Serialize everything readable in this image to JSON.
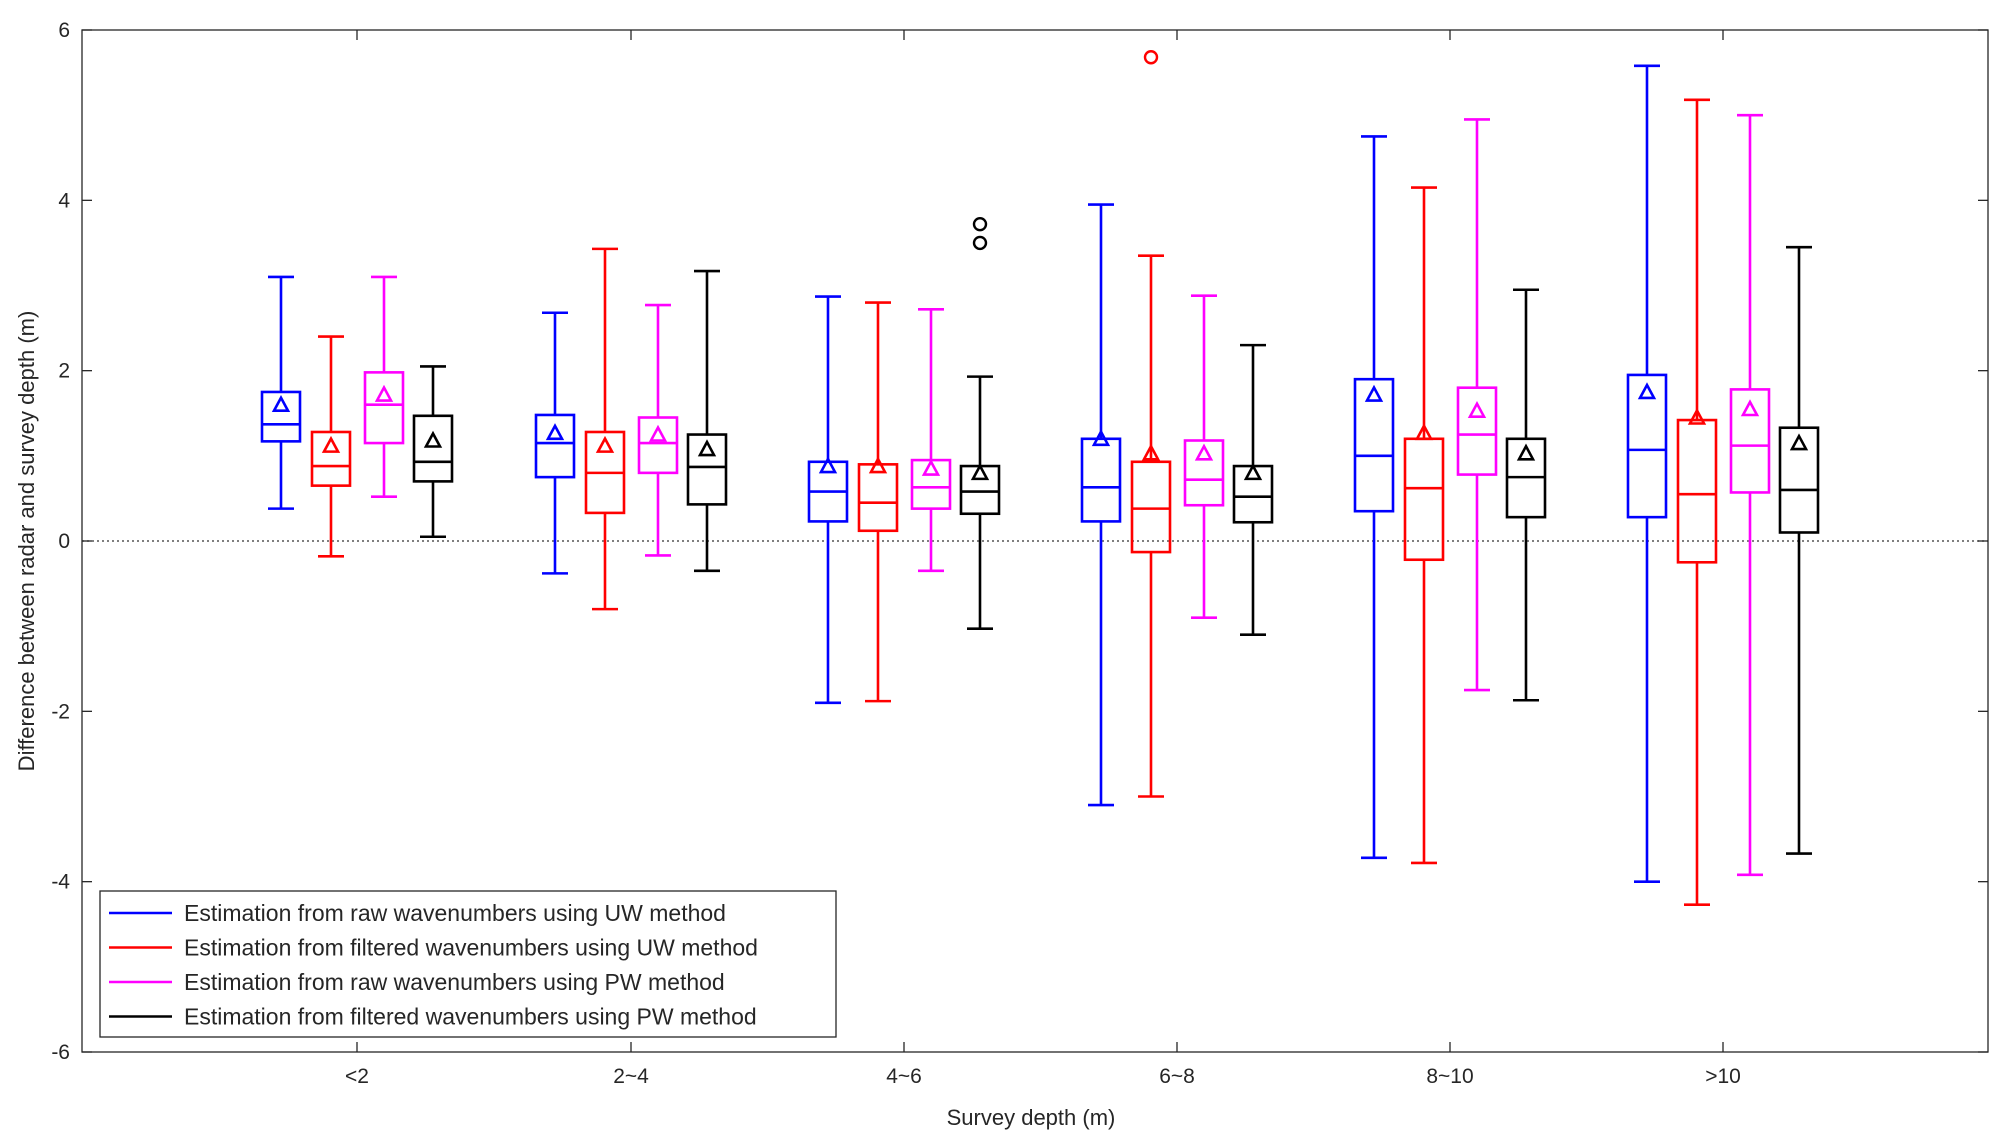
{
  "chart_data": {
    "type": "boxplot",
    "title": "",
    "xlabel": "Survey depth (m)",
    "ylabel": "Difference between radar and survey depth (m)",
    "ylim": [
      -6,
      6
    ],
    "yticks": [
      -6,
      -4,
      -2,
      0,
      2,
      4,
      6
    ],
    "ytick_labels": [
      "-6",
      "-4",
      "-2",
      "0",
      "2",
      "4",
      "6"
    ],
    "grid": false,
    "reference_line": 0,
    "legend_position": "bottom-left",
    "categories": [
      "<2",
      "2~4",
      "4~6",
      "6~8",
      "8~10",
      ">10"
    ],
    "series": [
      {
        "name": "Estimation from raw wavenumbers using UW method",
        "color": "#0000ff",
        "boxes": [
          {
            "whisker_low": 0.38,
            "q1": 1.17,
            "median": 1.37,
            "q3": 1.75,
            "whisker_high": 3.1,
            "mean": 1.6,
            "outliers": []
          },
          {
            "whisker_low": -0.38,
            "q1": 0.75,
            "median": 1.15,
            "q3": 1.48,
            "whisker_high": 2.68,
            "mean": 1.27,
            "outliers": []
          },
          {
            "whisker_low": -1.9,
            "q1": 0.23,
            "median": 0.58,
            "q3": 0.93,
            "whisker_high": 2.87,
            "mean": 0.88,
            "outliers": []
          },
          {
            "whisker_low": -3.1,
            "q1": 0.23,
            "median": 0.63,
            "q3": 1.2,
            "whisker_high": 3.95,
            "mean": 1.2,
            "outliers": []
          },
          {
            "whisker_low": -3.72,
            "q1": 0.35,
            "median": 1.0,
            "q3": 1.9,
            "whisker_high": 4.75,
            "mean": 1.72,
            "outliers": []
          },
          {
            "whisker_low": -4.0,
            "q1": 0.28,
            "median": 1.07,
            "q3": 1.95,
            "whisker_high": 5.58,
            "mean": 1.75,
            "outliers": []
          }
        ]
      },
      {
        "name": "Estimation from filtered wavenumbers using UW method",
        "color": "#ff0000",
        "boxes": [
          {
            "whisker_low": -0.18,
            "q1": 0.65,
            "median": 0.88,
            "q3": 1.28,
            "whisker_high": 2.4,
            "mean": 1.12,
            "outliers": []
          },
          {
            "whisker_low": -0.8,
            "q1": 0.33,
            "median": 0.8,
            "q3": 1.28,
            "whisker_high": 3.43,
            "mean": 1.12,
            "outliers": []
          },
          {
            "whisker_low": -1.88,
            "q1": 0.12,
            "median": 0.45,
            "q3": 0.9,
            "whisker_high": 2.8,
            "mean": 0.88,
            "outliers": []
          },
          {
            "whisker_low": -3.0,
            "q1": -0.13,
            "median": 0.38,
            "q3": 0.93,
            "whisker_high": 3.35,
            "mean": 1.03,
            "outliers": [
              5.68
            ]
          },
          {
            "whisker_low": -3.78,
            "q1": -0.22,
            "median": 0.62,
            "q3": 1.2,
            "whisker_high": 4.15,
            "mean": 1.27,
            "outliers": []
          },
          {
            "whisker_low": -4.27,
            "q1": -0.25,
            "median": 0.55,
            "q3": 1.42,
            "whisker_high": 5.18,
            "mean": 1.45,
            "outliers": []
          }
        ]
      },
      {
        "name": "Estimation from raw wavenumbers using PW method",
        "color": "#ff00ff",
        "boxes": [
          {
            "whisker_low": 0.52,
            "q1": 1.15,
            "median": 1.6,
            "q3": 1.98,
            "whisker_high": 3.1,
            "mean": 1.72,
            "outliers": []
          },
          {
            "whisker_low": -0.17,
            "q1": 0.8,
            "median": 1.15,
            "q3": 1.45,
            "whisker_high": 2.77,
            "mean": 1.25,
            "outliers": []
          },
          {
            "whisker_low": -0.35,
            "q1": 0.38,
            "median": 0.63,
            "q3": 0.95,
            "whisker_high": 2.72,
            "mean": 0.85,
            "outliers": []
          },
          {
            "whisker_low": -0.9,
            "q1": 0.42,
            "median": 0.72,
            "q3": 1.18,
            "whisker_high": 2.88,
            "mean": 1.03,
            "outliers": []
          },
          {
            "whisker_low": -1.75,
            "q1": 0.78,
            "median": 1.25,
            "q3": 1.8,
            "whisker_high": 4.95,
            "mean": 1.53,
            "outliers": []
          },
          {
            "whisker_low": -3.92,
            "q1": 0.57,
            "median": 1.12,
            "q3": 1.78,
            "whisker_high": 5.0,
            "mean": 1.55,
            "outliers": []
          }
        ]
      },
      {
        "name": "Estimation from filtered wavenumbers using PW method",
        "color": "#000000",
        "boxes": [
          {
            "whisker_low": 0.05,
            "q1": 0.7,
            "median": 0.93,
            "q3": 1.47,
            "whisker_high": 2.05,
            "mean": 1.18,
            "outliers": []
          },
          {
            "whisker_low": -0.35,
            "q1": 0.43,
            "median": 0.87,
            "q3": 1.25,
            "whisker_high": 3.17,
            "mean": 1.08,
            "outliers": []
          },
          {
            "whisker_low": -1.03,
            "q1": 0.32,
            "median": 0.58,
            "q3": 0.88,
            "whisker_high": 1.93,
            "mean": 0.8,
            "outliers": [
              3.5,
              3.72
            ]
          },
          {
            "whisker_low": -1.1,
            "q1": 0.22,
            "median": 0.52,
            "q3": 0.88,
            "whisker_high": 2.3,
            "mean": 0.8,
            "outliers": []
          },
          {
            "whisker_low": -1.87,
            "q1": 0.28,
            "median": 0.75,
            "q3": 1.2,
            "whisker_high": 2.95,
            "mean": 1.03,
            "outliers": []
          },
          {
            "whisker_low": -3.67,
            "q1": 0.1,
            "median": 0.6,
            "q3": 1.33,
            "whisker_high": 3.45,
            "mean": 1.15,
            "outliers": []
          }
        ]
      }
    ]
  }
}
